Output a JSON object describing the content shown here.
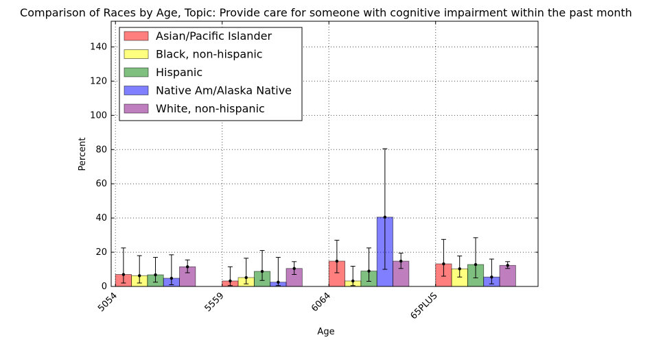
{
  "chart_data": {
    "type": "bar",
    "title": "Comparison of Races by Age, Topic: Provide care for someone with cognitive impairment within the past month",
    "xlabel": "Age",
    "ylabel": "Percent",
    "ylim": [
      0,
      155
    ],
    "yticks": [
      0,
      20,
      40,
      60,
      80,
      100,
      120,
      140
    ],
    "grid": true,
    "legend_position": "top-left",
    "categories": [
      "5054",
      "5559",
      "6064",
      "65PLUS"
    ],
    "series": [
      {
        "name": "Asian/Pacific Islander",
        "color": "#ff0000",
        "values": [
          7.0,
          3.2,
          14.8,
          13.2
        ],
        "err_low": [
          2.0,
          0.5,
          8.0,
          6.0
        ],
        "err_high": [
          22.5,
          11.5,
          27.0,
          27.5
        ]
      },
      {
        "name": "Black, non-hispanic",
        "color": "#ffff00",
        "values": [
          6.3,
          5.2,
          3.2,
          10.3
        ],
        "err_low": [
          2.0,
          1.5,
          0.5,
          5.5
        ],
        "err_high": [
          18.0,
          16.5,
          11.8,
          17.8
        ]
      },
      {
        "name": "Hispanic",
        "color": "#008000",
        "values": [
          6.8,
          8.8,
          9.0,
          12.8
        ],
        "err_low": [
          2.5,
          3.5,
          3.0,
          5.0
        ],
        "err_high": [
          17.0,
          21.0,
          22.5,
          28.5
        ]
      },
      {
        "name": "Native Am/Alaska Native",
        "color": "#0000ff",
        "values": [
          4.8,
          2.5,
          40.5,
          5.5
        ],
        "err_low": [
          1.0,
          0.5,
          10.0,
          1.5
        ],
        "err_high": [
          18.5,
          17.0,
          80.5,
          16.0
        ]
      },
      {
        "name": "White, non-hispanic",
        "color": "#800080",
        "values": [
          11.5,
          10.5,
          14.8,
          12.3
        ],
        "err_low": [
          8.0,
          7.0,
          10.5,
          10.5
        ],
        "err_high": [
          15.5,
          14.5,
          19.5,
          14.5
        ]
      }
    ]
  }
}
